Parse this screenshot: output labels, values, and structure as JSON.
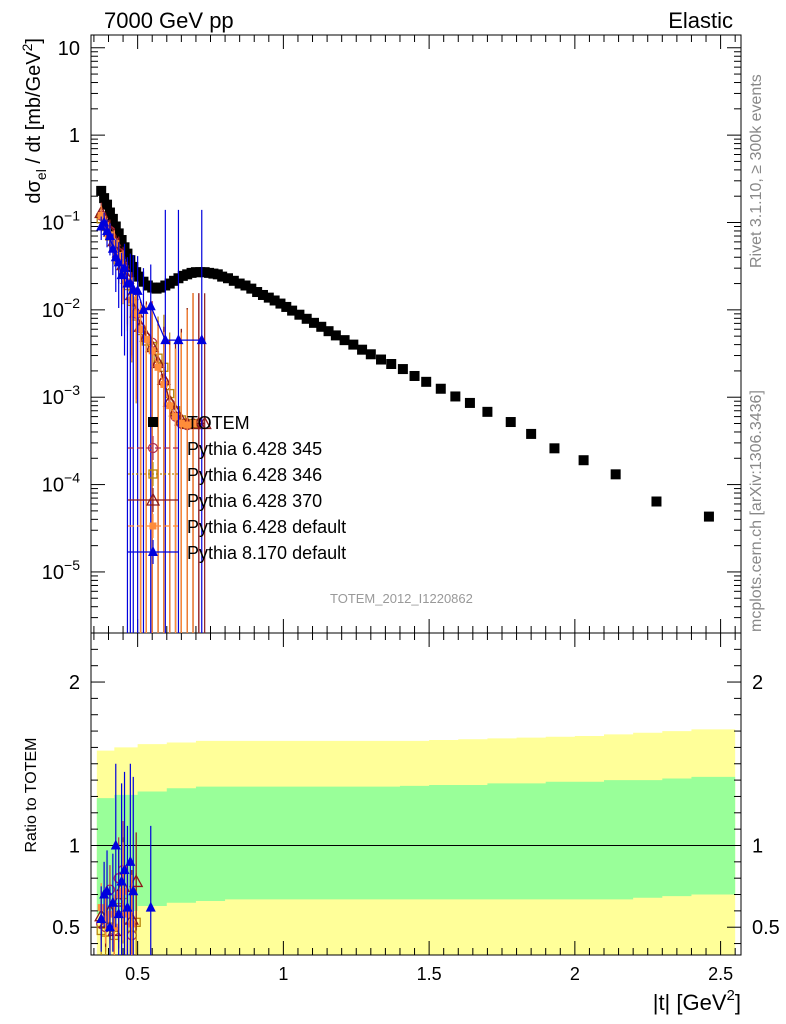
{
  "header": {
    "left": "7000 GeV pp",
    "right": "Elastic"
  },
  "side_labels": {
    "rivet": "Rivet 3.1.10, ≥ 300k events",
    "mcplots": "mcplots.cern.ch [arXiv:1306.3436]"
  },
  "watermark": "TOTEM_2012_I1220862",
  "colors": {
    "data": "#000000",
    "p345": "#b03050",
    "p346": "#b8860b",
    "p370": "#8b1a1a",
    "p6default": "#ff8c3a",
    "p8default": "#0000dd",
    "band_inner": "#99ff99",
    "band_outer": "#ffff99"
  },
  "chart_data": [
    {
      "type": "scatter",
      "panel": "main",
      "ylabel": "dσel / dt [mb/GeV2]",
      "yscale": "log",
      "ylim": [
        2e-06,
        14
      ],
      "xlim": [
        0.34,
        2.57
      ],
      "yticks": [
        "10",
        "1",
        "10−1",
        "10−2",
        "10−3",
        "10−4",
        "10−5"
      ],
      "legend_position": "center-left",
      "series": [
        {
          "name": "TOTEM",
          "key": "data",
          "marker": "square",
          "x": [
            0.375,
            0.385,
            0.395,
            0.405,
            0.415,
            0.425,
            0.435,
            0.445,
            0.455,
            0.465,
            0.475,
            0.485,
            0.495,
            0.505,
            0.52,
            0.535,
            0.55,
            0.565,
            0.58,
            0.595,
            0.61,
            0.625,
            0.64,
            0.655,
            0.67,
            0.685,
            0.7,
            0.715,
            0.73,
            0.745,
            0.76,
            0.775,
            0.79,
            0.81,
            0.83,
            0.85,
            0.87,
            0.89,
            0.91,
            0.93,
            0.95,
            0.97,
            0.99,
            1.01,
            1.03,
            1.055,
            1.08,
            1.105,
            1.13,
            1.155,
            1.18,
            1.21,
            1.24,
            1.27,
            1.3,
            1.335,
            1.37,
            1.41,
            1.45,
            1.49,
            1.54,
            1.59,
            1.64,
            1.7,
            1.78,
            1.85,
            1.93,
            2.03,
            2.14,
            2.28,
            2.46
          ],
          "values": [
            0.23,
            0.19,
            0.16,
            0.13,
            0.11,
            0.09,
            0.075,
            0.063,
            0.052,
            0.044,
            0.037,
            0.031,
            0.027,
            0.024,
            0.021,
            0.019,
            0.018,
            0.0175,
            0.018,
            0.019,
            0.02,
            0.0215,
            0.023,
            0.0245,
            0.0255,
            0.0265,
            0.027,
            0.027,
            0.027,
            0.0265,
            0.026,
            0.0255,
            0.024,
            0.023,
            0.0215,
            0.02,
            0.019,
            0.0175,
            0.016,
            0.0148,
            0.0138,
            0.0128,
            0.0118,
            0.0108,
            0.0098,
            0.0088,
            0.0079,
            0.0071,
            0.0064,
            0.0057,
            0.0051,
            0.0045,
            0.004,
            0.0035,
            0.0031,
            0.0027,
            0.0024,
            0.0021,
            0.00175,
            0.0015,
            0.00125,
            0.00102,
            0.00086,
            0.00068,
            0.00052,
            0.00038,
            0.00026,
            0.00019,
            0.000131,
            6.4e-05,
            4.3e-05
          ]
        },
        {
          "name": "Pythia 6.428 345",
          "key": "p345",
          "marker": "circle-open",
          "dash": "6,3",
          "x": [
            0.375,
            0.39,
            0.405,
            0.42,
            0.435,
            0.45,
            0.465,
            0.48,
            0.495,
            0.51,
            0.53,
            0.55,
            0.57,
            0.59,
            0.61,
            0.63,
            0.65,
            0.67,
            0.69,
            0.71
          ],
          "values": [
            0.12,
            0.095,
            0.08,
            0.06,
            0.045,
            0.032,
            0.022,
            0.014,
            0.009,
            0.0062,
            0.0048,
            0.0042,
            0.0024,
            0.0015,
            0.00085,
            0.0006,
            0.0005,
            0.00048,
            0.0005,
            0.0005
          ],
          "err": [
            0.3,
            0.3,
            0.35,
            0.4,
            0.5,
            0.6,
            0.7,
            0.8,
            0.9,
            1.0,
            1.5,
            2,
            2,
            3,
            4,
            5,
            10,
            20,
            30,
            30
          ]
        },
        {
          "name": "Pythia 6.428 346",
          "key": "p346",
          "marker": "square-open",
          "dash": "2,2",
          "x": [
            0.375,
            0.39,
            0.405,
            0.42,
            0.435,
            0.45,
            0.465,
            0.48,
            0.495,
            0.51,
            0.53,
            0.55,
            0.57,
            0.59,
            0.61,
            0.63,
            0.65,
            0.67,
            0.69
          ],
          "values": [
            0.11,
            0.09,
            0.07,
            0.055,
            0.04,
            0.029,
            0.019,
            0.0125,
            0.0085,
            0.0058,
            0.0044,
            0.0038,
            0.0028,
            0.0022,
            0.0011,
            0.0007,
            0.00055,
            0.0005,
            0.0005
          ],
          "err": [
            0.3,
            0.3,
            0.35,
            0.4,
            0.5,
            0.6,
            0.7,
            0.8,
            0.9,
            1.0,
            1.5,
            2,
            2,
            3,
            4,
            5,
            10,
            20,
            30
          ]
        },
        {
          "name": "Pythia 6.428 370",
          "key": "p370",
          "marker": "triangle-open",
          "dash": "",
          "x": [
            0.375,
            0.39,
            0.405,
            0.42,
            0.435,
            0.45,
            0.465,
            0.48,
            0.495,
            0.51,
            0.53,
            0.55,
            0.57,
            0.59,
            0.61,
            0.63,
            0.65,
            0.67,
            0.69,
            0.71,
            0.73
          ],
          "values": [
            0.13,
            0.1,
            0.08,
            0.062,
            0.046,
            0.033,
            0.023,
            0.015,
            0.0095,
            0.0065,
            0.005,
            0.0038,
            0.0025,
            0.0016,
            0.0009,
            0.0007,
            0.00055,
            0.0005,
            0.0005,
            0.0005,
            0.0005
          ],
          "err": [
            0.3,
            0.3,
            0.35,
            0.4,
            0.5,
            0.6,
            0.7,
            0.8,
            0.9,
            1.0,
            1.5,
            2,
            2,
            3,
            4,
            5,
            10,
            20,
            30,
            30,
            30
          ]
        },
        {
          "name": "Pythia 6.428 default",
          "key": "p6default",
          "marker": "square-filled-small",
          "dash": "6,3",
          "x": [
            0.375,
            0.39,
            0.405,
            0.42,
            0.435,
            0.45,
            0.465,
            0.48,
            0.495,
            0.51,
            0.53,
            0.55,
            0.57,
            0.59,
            0.61,
            0.63,
            0.65,
            0.67,
            0.69
          ],
          "values": [
            0.12,
            0.092,
            0.072,
            0.058,
            0.042,
            0.03,
            0.021,
            0.013,
            0.009,
            0.006,
            0.0046,
            0.0034,
            0.0022,
            0.0014,
            0.0008,
            0.0006,
            0.0005,
            0.00048,
            0.0005
          ],
          "err": [
            0.3,
            0.3,
            0.35,
            0.4,
            0.5,
            0.6,
            0.7,
            0.8,
            0.9,
            1.0,
            1.5,
            2,
            2,
            3,
            4,
            5,
            10,
            20,
            30
          ]
        },
        {
          "name": "Pythia 8.170 default",
          "key": "p8default",
          "marker": "triangle-filled",
          "dash": "",
          "x": [
            0.375,
            0.385,
            0.395,
            0.405,
            0.415,
            0.425,
            0.435,
            0.445,
            0.455,
            0.465,
            0.475,
            0.485,
            0.5,
            0.52,
            0.545,
            0.595,
            0.64,
            0.72
          ],
          "values": [
            0.09,
            0.1,
            0.08,
            0.07,
            0.05,
            0.04,
            0.035,
            0.025,
            0.03,
            0.02,
            0.02,
            0.017,
            0.0165,
            0.01,
            0.011,
            0.0045,
            0.0045,
            0.0045
          ],
          "err": [
            0.3,
            0.3,
            0.35,
            0.4,
            0.5,
            0.6,
            0.7,
            0.8,
            0.9,
            1.0,
            1.2,
            1.5,
            1.5,
            2,
            2,
            30,
            30,
            30
          ]
        }
      ]
    },
    {
      "type": "scatter",
      "panel": "ratio",
      "xlabel": "|t| [GeV2]",
      "ylabel": "Ratio to TOTEM",
      "ylim": [
        0.33,
        2.3
      ],
      "xlim": [
        0.34,
        2.57
      ],
      "xticks": [
        "0.5",
        "1",
        "1.5",
        "2",
        "2.5"
      ],
      "yticks": [
        "0.5",
        "1",
        "2"
      ],
      "band_x": [
        0.36,
        0.42,
        0.5,
        0.6,
        0.7,
        0.8,
        0.9,
        1.0,
        1.1,
        1.2,
        1.3,
        1.4,
        1.5,
        1.6,
        1.7,
        1.8,
        1.9,
        2.0,
        2.1,
        2.2,
        2.3,
        2.4,
        2.55
      ],
      "band_inner_upper": [
        1.29,
        1.31,
        1.33,
        1.35,
        1.36,
        1.36,
        1.36,
        1.36,
        1.36,
        1.36,
        1.36,
        1.365,
        1.37,
        1.37,
        1.38,
        1.38,
        1.39,
        1.39,
        1.4,
        1.4,
        1.41,
        1.42,
        1.43
      ],
      "band_inner_lower": [
        0.58,
        0.6,
        0.63,
        0.65,
        0.66,
        0.67,
        0.67,
        0.67,
        0.67,
        0.67,
        0.67,
        0.67,
        0.67,
        0.67,
        0.67,
        0.67,
        0.67,
        0.67,
        0.67,
        0.68,
        0.69,
        0.7,
        0.72
      ],
      "band_outer_upper": [
        1.58,
        1.6,
        1.62,
        1.63,
        1.64,
        1.64,
        1.64,
        1.64,
        1.64,
        1.64,
        1.64,
        1.64,
        1.645,
        1.65,
        1.655,
        1.66,
        1.665,
        1.67,
        1.68,
        1.69,
        1.7,
        1.71,
        1.72
      ],
      "band_outer_lower": [
        0.33,
        0.33,
        0.33,
        0.33,
        0.33,
        0.33,
        0.33,
        0.33,
        0.33,
        0.33,
        0.33,
        0.33,
        0.33,
        0.33,
        0.33,
        0.33,
        0.33,
        0.33,
        0.33,
        0.33,
        0.33,
        0.33,
        0.33
      ],
      "series": [
        {
          "key": "p345",
          "marker": "circle-open",
          "x": [
            0.375,
            0.39,
            0.405,
            0.42,
            0.435,
            0.45,
            0.465,
            0.48
          ],
          "values": [
            0.52,
            0.5,
            0.73,
            0.48,
            0.8,
            0.85,
            0.6,
            0.45
          ],
          "err": [
            0.15,
            0.15,
            0.15,
            0.2,
            0.25,
            0.3,
            0.3,
            0.3
          ]
        },
        {
          "key": "p346",
          "marker": "square-open",
          "x": [
            0.375,
            0.39,
            0.405,
            0.42,
            0.435,
            0.45,
            0.465,
            0.48,
            0.495
          ],
          "values": [
            0.48,
            0.47,
            0.55,
            0.45,
            0.62,
            0.7,
            0.55,
            0.5,
            0.53
          ],
          "err": [
            0.15,
            0.15,
            0.15,
            0.2,
            0.25,
            0.3,
            0.3,
            0.3,
            0.3
          ]
        },
        {
          "key": "p370",
          "marker": "triangle-open",
          "x": [
            0.375,
            0.39,
            0.405,
            0.42,
            0.435,
            0.45,
            0.465,
            0.48,
            0.495
          ],
          "values": [
            0.57,
            0.53,
            0.6,
            0.48,
            0.66,
            0.75,
            0.6,
            0.55,
            0.78
          ],
          "err": [
            0.15,
            0.15,
            0.15,
            0.2,
            0.25,
            0.3,
            0.3,
            0.3,
            0.3
          ]
        },
        {
          "key": "p6default",
          "marker": "square-filled-small",
          "x": [
            0.375,
            0.39,
            0.405,
            0.42,
            0.435,
            0.45,
            0.465,
            0.48
          ],
          "values": [
            0.62,
            0.55,
            0.58,
            0.5,
            0.7,
            0.72,
            0.58,
            0.52
          ],
          "err": [
            0.15,
            0.15,
            0.15,
            0.2,
            0.25,
            0.3,
            0.3,
            0.3
          ]
        },
        {
          "key": "p8default",
          "marker": "triangle-filled",
          "x": [
            0.375,
            0.385,
            0.395,
            0.405,
            0.415,
            0.425,
            0.435,
            0.445,
            0.455,
            0.465,
            0.475,
            0.485,
            0.545
          ],
          "values": [
            0.55,
            0.7,
            0.72,
            0.5,
            0.65,
            1.0,
            0.58,
            0.78,
            0.85,
            0.62,
            0.9,
            0.72,
            0.62
          ],
          "err": [
            0.2,
            0.2,
            0.25,
            0.25,
            0.3,
            0.5,
            0.4,
            0.6,
            0.6,
            0.5,
            0.6,
            0.7,
            0.5
          ]
        }
      ]
    }
  ]
}
